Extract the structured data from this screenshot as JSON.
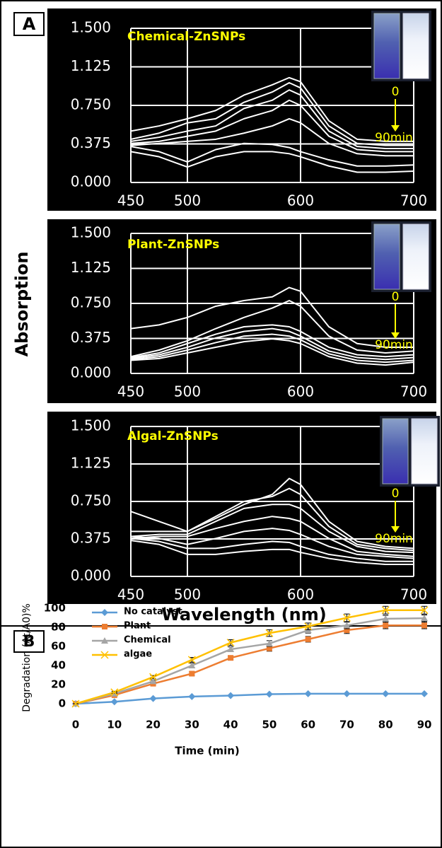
{
  "figure": {
    "panel_a_label": "A",
    "panel_b_label": "B",
    "a_ylabel": "Absorption",
    "a_xlabel": "Wavelength (nm)"
  },
  "chart_data": [
    {
      "type": "line",
      "title": "Chemical-ZnSNPs",
      "annotations": [
        "0",
        "90min"
      ],
      "background": "#000000",
      "color": "#ffffff",
      "grid": true,
      "x": [
        450,
        475,
        500,
        525,
        550,
        575,
        590,
        600,
        625,
        650,
        675,
        700
      ],
      "xlim": [
        450,
        700
      ],
      "xticks": [
        450,
        500,
        600,
        700
      ],
      "ylim": [
        0,
        1.5
      ],
      "yticks": [
        {
          "value": 0,
          "label": "0.000"
        },
        {
          "value": 0.375,
          "label": "0.375"
        },
        {
          "value": 0.75,
          "label": "0.750"
        },
        {
          "value": 1.125,
          "label": "1.125"
        },
        {
          "value": 1.5,
          "label": "1.500"
        }
      ],
      "series": [
        {
          "values": [
            0.5,
            0.55,
            0.62,
            0.7,
            0.85,
            0.95,
            1.02,
            0.98,
            0.6,
            0.42,
            0.4,
            0.4
          ]
        },
        {
          "values": [
            0.42,
            0.48,
            0.58,
            0.62,
            0.78,
            0.88,
            0.97,
            0.92,
            0.55,
            0.38,
            0.36,
            0.36
          ]
        },
        {
          "values": [
            0.4,
            0.44,
            0.5,
            0.55,
            0.72,
            0.8,
            0.9,
            0.85,
            0.5,
            0.35,
            0.33,
            0.33
          ]
        },
        {
          "values": [
            0.38,
            0.4,
            0.45,
            0.5,
            0.62,
            0.7,
            0.8,
            0.75,
            0.45,
            0.32,
            0.3,
            0.3
          ]
        },
        {
          "values": [
            0.36,
            0.38,
            0.4,
            0.42,
            0.48,
            0.55,
            0.62,
            0.58,
            0.38,
            0.28,
            0.26,
            0.26
          ]
        },
        {
          "values": [
            0.35,
            0.3,
            0.2,
            0.32,
            0.38,
            0.37,
            0.34,
            0.3,
            0.22,
            0.16,
            0.16,
            0.17
          ]
        },
        {
          "values": [
            0.3,
            0.25,
            0.15,
            0.25,
            0.3,
            0.3,
            0.28,
            0.25,
            0.16,
            0.1,
            0.1,
            0.11
          ]
        }
      ]
    },
    {
      "type": "line",
      "title": "Plant-ZnSNPs",
      "annotations": [
        "0",
        "90min"
      ],
      "background": "#000000",
      "color": "#ffffff",
      "grid": true,
      "x": [
        450,
        475,
        500,
        525,
        550,
        575,
        590,
        600,
        625,
        650,
        675,
        700
      ],
      "xlim": [
        450,
        700
      ],
      "xticks": [
        450,
        500,
        600,
        700
      ],
      "ylim": [
        0,
        1.5
      ],
      "yticks": [
        {
          "value": 0,
          "label": "0.000"
        },
        {
          "value": 0.375,
          "label": "0.375"
        },
        {
          "value": 0.75,
          "label": "0.750"
        },
        {
          "value": 1.125,
          "label": "1.125"
        },
        {
          "value": 1.5,
          "label": "1.500"
        }
      ],
      "series": [
        {
          "values": [
            0.48,
            0.52,
            0.6,
            0.72,
            0.78,
            0.82,
            0.92,
            0.88,
            0.5,
            0.32,
            0.28,
            0.28
          ]
        },
        {
          "values": [
            0.18,
            0.25,
            0.35,
            0.48,
            0.6,
            0.7,
            0.78,
            0.72,
            0.4,
            0.25,
            0.22,
            0.24
          ]
        },
        {
          "values": [
            0.17,
            0.22,
            0.32,
            0.42,
            0.5,
            0.52,
            0.5,
            0.45,
            0.28,
            0.2,
            0.18,
            0.2
          ]
        },
        {
          "values": [
            0.16,
            0.2,
            0.28,
            0.38,
            0.45,
            0.48,
            0.45,
            0.4,
            0.24,
            0.17,
            0.15,
            0.17
          ]
        },
        {
          "values": [
            0.15,
            0.18,
            0.25,
            0.33,
            0.4,
            0.42,
            0.4,
            0.36,
            0.21,
            0.14,
            0.12,
            0.14
          ]
        },
        {
          "values": [
            0.14,
            0.16,
            0.22,
            0.28,
            0.34,
            0.37,
            0.35,
            0.32,
            0.18,
            0.11,
            0.09,
            0.12
          ]
        }
      ]
    },
    {
      "type": "line",
      "title": "Algal-ZnSNPs",
      "annotations": [
        "0",
        "90min"
      ],
      "background": "#000000",
      "color": "#ffffff",
      "grid": true,
      "x": [
        450,
        475,
        500,
        525,
        550,
        575,
        590,
        600,
        625,
        650,
        675,
        700
      ],
      "xlim": [
        450,
        700
      ],
      "xticks": [
        450,
        500,
        600,
        700
      ],
      "ylim": [
        0,
        1.5
      ],
      "yticks": [
        {
          "value": 0,
          "label": "0.000"
        },
        {
          "value": 0.375,
          "label": "0.375"
        },
        {
          "value": 0.75,
          "label": "0.750"
        },
        {
          "value": 1.125,
          "label": "1.125"
        },
        {
          "value": 1.5,
          "label": "1.500"
        }
      ],
      "series": [
        {
          "values": [
            0.65,
            0.55,
            0.45,
            0.58,
            0.72,
            0.82,
            0.98,
            0.92,
            0.55,
            0.35,
            0.3,
            0.28
          ]
        },
        {
          "values": [
            0.45,
            0.45,
            0.45,
            0.6,
            0.75,
            0.8,
            0.88,
            0.82,
            0.5,
            0.32,
            0.28,
            0.26
          ]
        },
        {
          "values": [
            0.4,
            0.42,
            0.42,
            0.55,
            0.68,
            0.72,
            0.72,
            0.68,
            0.45,
            0.3,
            0.25,
            0.24
          ]
        },
        {
          "values": [
            0.38,
            0.4,
            0.4,
            0.48,
            0.55,
            0.6,
            0.58,
            0.55,
            0.38,
            0.25,
            0.22,
            0.2
          ]
        },
        {
          "values": [
            0.4,
            0.38,
            0.32,
            0.38,
            0.45,
            0.48,
            0.46,
            0.42,
            0.3,
            0.22,
            0.2,
            0.18
          ]
        },
        {
          "values": [
            0.38,
            0.35,
            0.28,
            0.28,
            0.32,
            0.35,
            0.34,
            0.3,
            0.22,
            0.18,
            0.15,
            0.15
          ]
        },
        {
          "values": [
            0.36,
            0.32,
            0.22,
            0.22,
            0.25,
            0.27,
            0.27,
            0.24,
            0.18,
            0.14,
            0.12,
            0.12
          ]
        }
      ]
    },
    {
      "type": "line",
      "xlabel": "Time (min)",
      "ylabel": "Degradation (At/A0)%",
      "legend": "upper left",
      "grid": false,
      "x": [
        0,
        10,
        20,
        30,
        40,
        50,
        60,
        70,
        80,
        90
      ],
      "xlim": [
        0,
        90
      ],
      "xticks": [
        0,
        10,
        20,
        30,
        40,
        50,
        60,
        70,
        80,
        90
      ],
      "ylim": [
        0,
        100
      ],
      "yticks": [
        0,
        20,
        40,
        60,
        80,
        100
      ],
      "series": [
        {
          "name": "No catalyst",
          "color": "#5b9bd5",
          "marker": "diamond",
          "values": [
            0,
            2,
            5.5,
            7.5,
            8.5,
            10,
            10.5,
            10.5,
            10.5,
            10.5
          ]
        },
        {
          "name": "Plant",
          "color": "#ed7d31",
          "marker": "square",
          "values": [
            0,
            9,
            21,
            31.5,
            48,
            58,
            67.5,
            77,
            82,
            82
          ],
          "errors": [
            0,
            1,
            1.5,
            2,
            2,
            3,
            3,
            3.5,
            3.5,
            3.5
          ]
        },
        {
          "name": "Chemical",
          "color": "#a5a5a5",
          "marker": "triangle",
          "values": [
            0,
            10.5,
            23.5,
            40,
            57,
            63,
            77,
            82,
            89,
            89.5
          ],
          "errors": [
            0,
            1,
            1.5,
            2.5,
            2.5,
            3,
            3,
            3.5,
            3.5,
            3.5
          ]
        },
        {
          "name": "algae",
          "color": "#ffc000",
          "marker": "x",
          "values": [
            0,
            12,
            28,
            46,
            64,
            74,
            81,
            90,
            98,
            98
          ],
          "errors": [
            0,
            1,
            1.5,
            2.5,
            3,
            3.5,
            3.5,
            4,
            4,
            4
          ]
        }
      ]
    }
  ]
}
